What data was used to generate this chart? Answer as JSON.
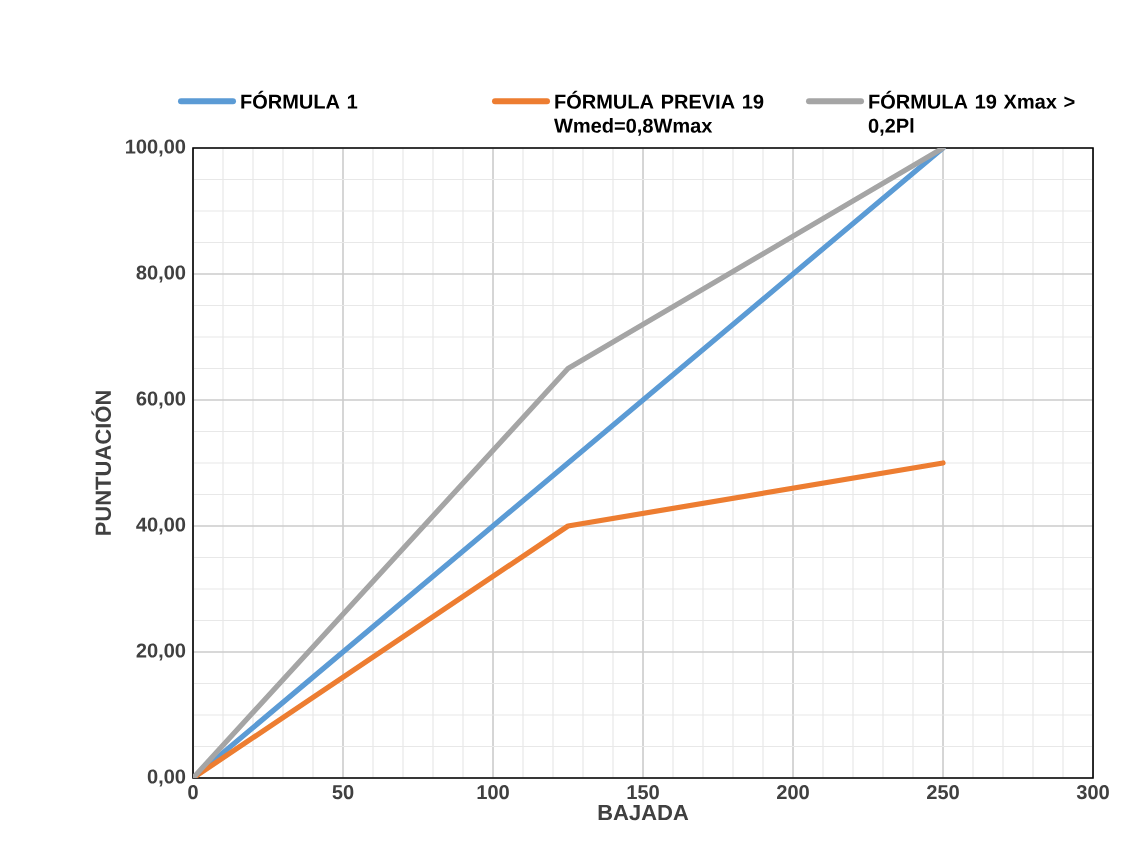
{
  "chart_data": {
    "type": "line",
    "xlabel": "BAJADA",
    "ylabel": "PUNTUACIÓN",
    "x": [
      0,
      125,
      250
    ],
    "series": [
      {
        "name": "FÓRMULA 1",
        "color": "#5b9bd5",
        "values": [
          0,
          50,
          100
        ]
      },
      {
        "name": "FÓRMULA PREVIA 19 Wmed=0,8Wmax",
        "color": "#ed7d31",
        "values": [
          0,
          40,
          50
        ]
      },
      {
        "name": "FÓRMULA  19 Xmax > 0,2Pl",
        "color": "#a5a5a5",
        "values": [
          0,
          65,
          100
        ]
      }
    ],
    "xlim": [
      0,
      300
    ],
    "xticks": [
      0,
      50,
      100,
      150,
      200,
      250,
      300
    ],
    "ylim": [
      0,
      100
    ],
    "yticks": [
      {
        "value": 0,
        "label": "0,00"
      },
      {
        "value": 20,
        "label": "20,00"
      },
      {
        "value": 40,
        "label": "40,00"
      },
      {
        "value": 60,
        "label": "60,00"
      },
      {
        "value": 80,
        "label": "80,00"
      },
      {
        "value": 100,
        "label": "100,00"
      }
    ],
    "grid": true,
    "legend": "top"
  }
}
